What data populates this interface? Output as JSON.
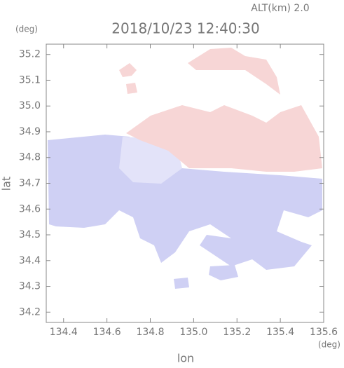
{
  "chart_data": {
    "type": "map",
    "title": "2018/10/23 12:40:30",
    "subtitle": "ALT(km) 2.0",
    "x_label": "lon",
    "y_label": "lat",
    "x_unit": "(deg)",
    "y_unit": "(deg)",
    "xlim": [
      134.32,
      135.6
    ],
    "xticks": [
      134.4,
      134.6,
      134.8,
      {
        "value": 135,
        "label": "135.0"
      },
      135.2,
      135.4,
      135.6
    ],
    "ylim": [
      34.16,
      35.24
    ],
    "yticks": [
      34.2,
      34.3,
      34.4,
      34.5,
      34.6,
      34.7,
      34.8,
      34.9,
      {
        "value": 35,
        "label": "35.0"
      },
      35.1,
      35.2
    ]
  }
}
